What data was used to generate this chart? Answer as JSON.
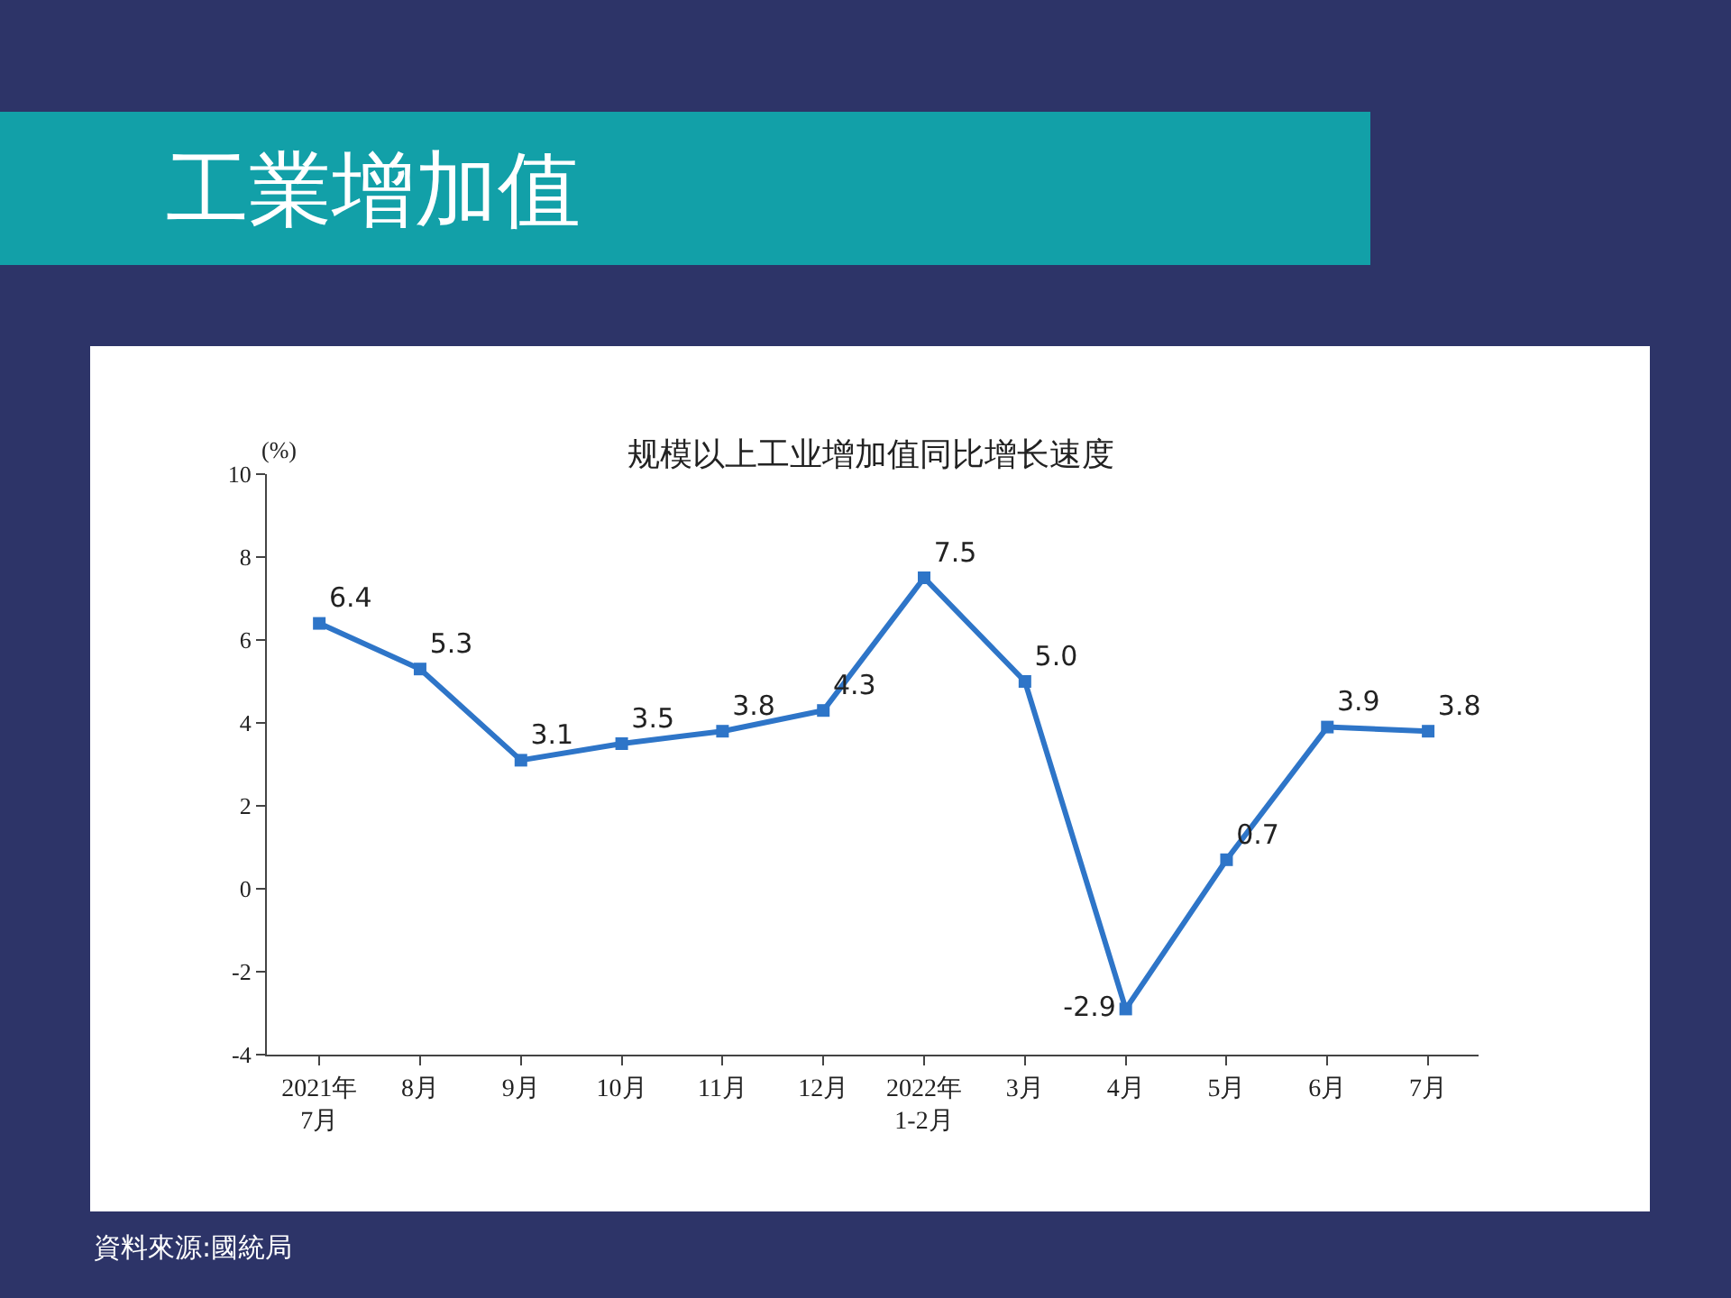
{
  "chart_data": {
    "type": "line",
    "title": "工業增加值",
    "subtitle": "规模以上工业增加值同比增长速度",
    "ylabel": "(%)",
    "categories": [
      "2021年\n7月",
      "8月",
      "9月",
      "10月",
      "11月",
      "12月",
      "2022年\n1-2月",
      "3月",
      "4月",
      "5月",
      "6月",
      "7月"
    ],
    "series": [
      {
        "color": "#2e75c8",
        "values": [
          6.4,
          5.3,
          3.1,
          3.5,
          3.8,
          4.3,
          7.5,
          5.0,
          -2.9,
          0.7,
          3.9,
          3.8
        ],
        "value_labels": [
          "6.4",
          "5.3",
          "3.1",
          "3.5",
          "3.8",
          "4.3",
          "7.5",
          "5.0",
          "-2.9",
          "0.7",
          "3.9",
          "3.8"
        ]
      }
    ],
    "ylim": [
      -4,
      10
    ],
    "yticks": [
      -4,
      -2,
      0,
      2,
      4,
      6,
      8,
      10
    ],
    "marker": "square",
    "line_style": "solid",
    "annotations": [
      "資料來源:國統局"
    ]
  }
}
